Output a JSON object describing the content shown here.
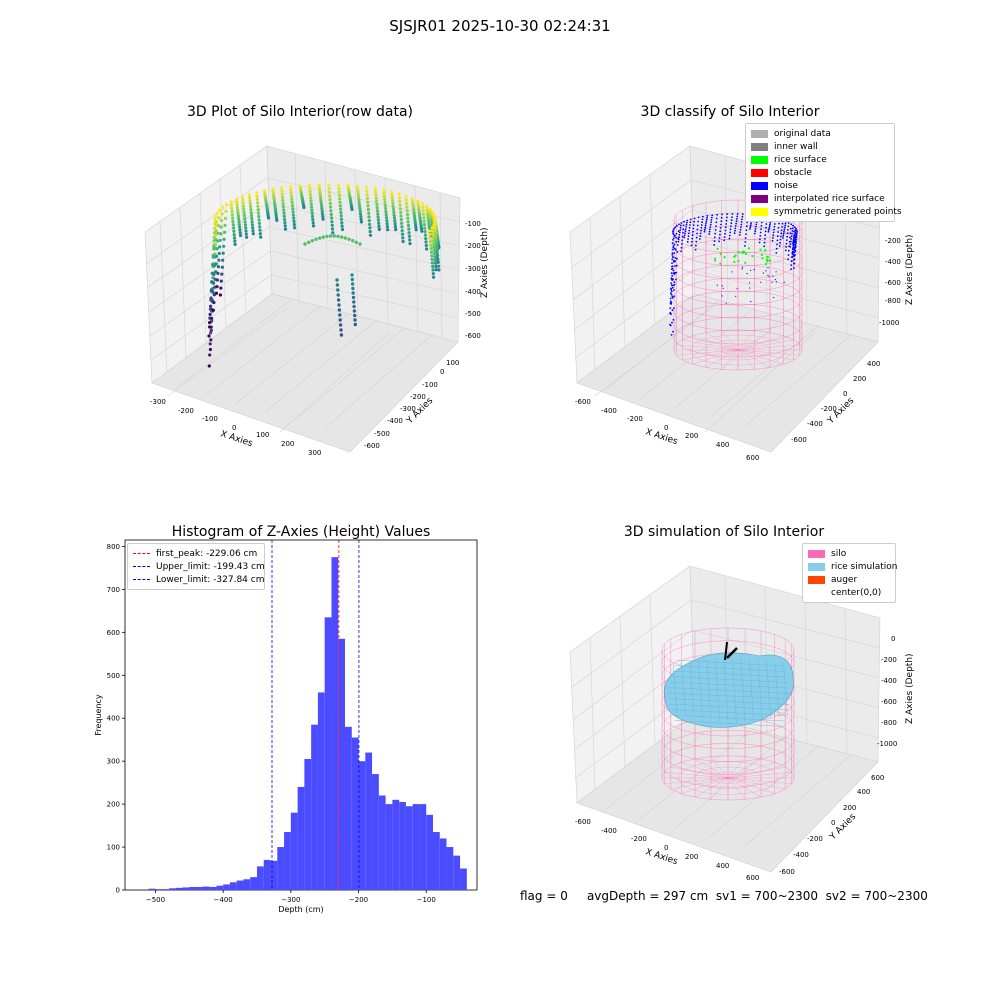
{
  "suptitle": "SJSJR01 2025-10-30 02:24:31",
  "panel_tl": {
    "title": "3D Plot of Silo Interior(row data)",
    "xlabel": "X Axies",
    "ylabel": "Y Axies",
    "zlabel": "Z Axies (Depth)",
    "xticks": [
      "-300",
      "-200",
      "-100",
      "0",
      "100",
      "200",
      "300"
    ],
    "yticks": [
      "100",
      "0",
      "-100",
      "-200",
      "-300",
      "-400",
      "-500",
      "-600"
    ],
    "zticks": [
      "-100",
      "-200",
      "-300",
      "-400",
      "-500",
      "-600"
    ]
  },
  "panel_tr": {
    "title": "3D classify of Silo Interior",
    "xlabel": "X Axies",
    "ylabel": "Y Axies",
    "zlabel": "Z Axies (Depth)",
    "xticks": [
      "-600",
      "-400",
      "-200",
      "0",
      "200",
      "400",
      "600"
    ],
    "yticks": [
      "400",
      "200",
      "0",
      "-200",
      "-400",
      "-600"
    ],
    "zticks": [
      "0",
      "-200",
      "-400",
      "-600",
      "-800",
      "-1000"
    ],
    "legend": [
      {
        "label": "original data",
        "color": "#b0b0b0"
      },
      {
        "label": "inner wall",
        "color": "#808080"
      },
      {
        "label": "rice surface",
        "color": "#00ff00"
      },
      {
        "label": "obstacle",
        "color": "#ff0000"
      },
      {
        "label": "noise",
        "color": "#0000ff"
      },
      {
        "label": "interpolated rice surface",
        "color": "#800080"
      },
      {
        "label": "symmetric generated points",
        "color": "#ffff00"
      }
    ]
  },
  "panel_br": {
    "title": "3D simulation of Silo Interior",
    "xlabel": "X Axies",
    "ylabel": "Y Axies",
    "zlabel": "Z Axies (Depth)",
    "xticks": [
      "-600",
      "-400",
      "-200",
      "0",
      "200",
      "400",
      "600"
    ],
    "yticks": [
      "600",
      "400",
      "200",
      "0",
      "-200",
      "-400",
      "-600"
    ],
    "zticks": [
      "0",
      "-200",
      "-400",
      "-600",
      "-800",
      "-1000"
    ],
    "legend": [
      {
        "label": "silo",
        "color": "#ff69b4"
      },
      {
        "label": "rice simulation",
        "color": "#87ceeb"
      },
      {
        "label": "auger",
        "color": "#ff4500"
      },
      {
        "label": "center(0,0)",
        "color": "#ffffff"
      }
    ]
  },
  "chart_data": {
    "type": "bar",
    "title": "Histogram of Z-Axies (Height) Values",
    "xlabel": "Depth (cm)",
    "ylabel": "Frequency",
    "xlim": [
      -545,
      -25
    ],
    "ylim": [
      0,
      815
    ],
    "xticks": [
      -500,
      -400,
      -300,
      -200,
      -100
    ],
    "yticks": [
      0,
      100,
      200,
      300,
      400,
      500,
      600,
      700,
      800
    ],
    "bin_width": 10,
    "bin_starts": [
      -510,
      -500,
      -490,
      -480,
      -470,
      -460,
      -450,
      -440,
      -430,
      -420,
      -410,
      -400,
      -390,
      -380,
      -370,
      -360,
      -350,
      -340,
      -330,
      -320,
      -310,
      -300,
      -290,
      -280,
      -270,
      -260,
      -250,
      -240,
      -230,
      -220,
      -210,
      -200,
      -190,
      -180,
      -170,
      -160,
      -150,
      -140,
      -130,
      -120,
      -110,
      -100,
      -90,
      -80,
      -70,
      -60,
      -50,
      -40
    ],
    "values": [
      3,
      2,
      2,
      4,
      5,
      6,
      7,
      7,
      8,
      7,
      10,
      13,
      18,
      22,
      25,
      30,
      55,
      70,
      68,
      100,
      135,
      180,
      240,
      305,
      385,
      460,
      635,
      775,
      585,
      380,
      355,
      300,
      320,
      270,
      220,
      200,
      210,
      205,
      195,
      200,
      200,
      175,
      135,
      120,
      100,
      80,
      50,
      0
    ],
    "reference_lines": [
      {
        "label": "first_peak: -229.06 cm",
        "value": -229.06,
        "color": "#ff0000"
      },
      {
        "label": "Upper_limit: -199.43 cm",
        "value": -199.43,
        "color": "#0000ff"
      },
      {
        "label": "Lower_limit: -327.84 cm",
        "value": -327.84,
        "color": "#0000ff"
      }
    ],
    "bar_color": "#4b4bff"
  },
  "footer": {
    "flag": "flag = 0",
    "avg": "avgDepth = 297 cm  sv1 = 700~2300  sv2 = 700~2300"
  }
}
